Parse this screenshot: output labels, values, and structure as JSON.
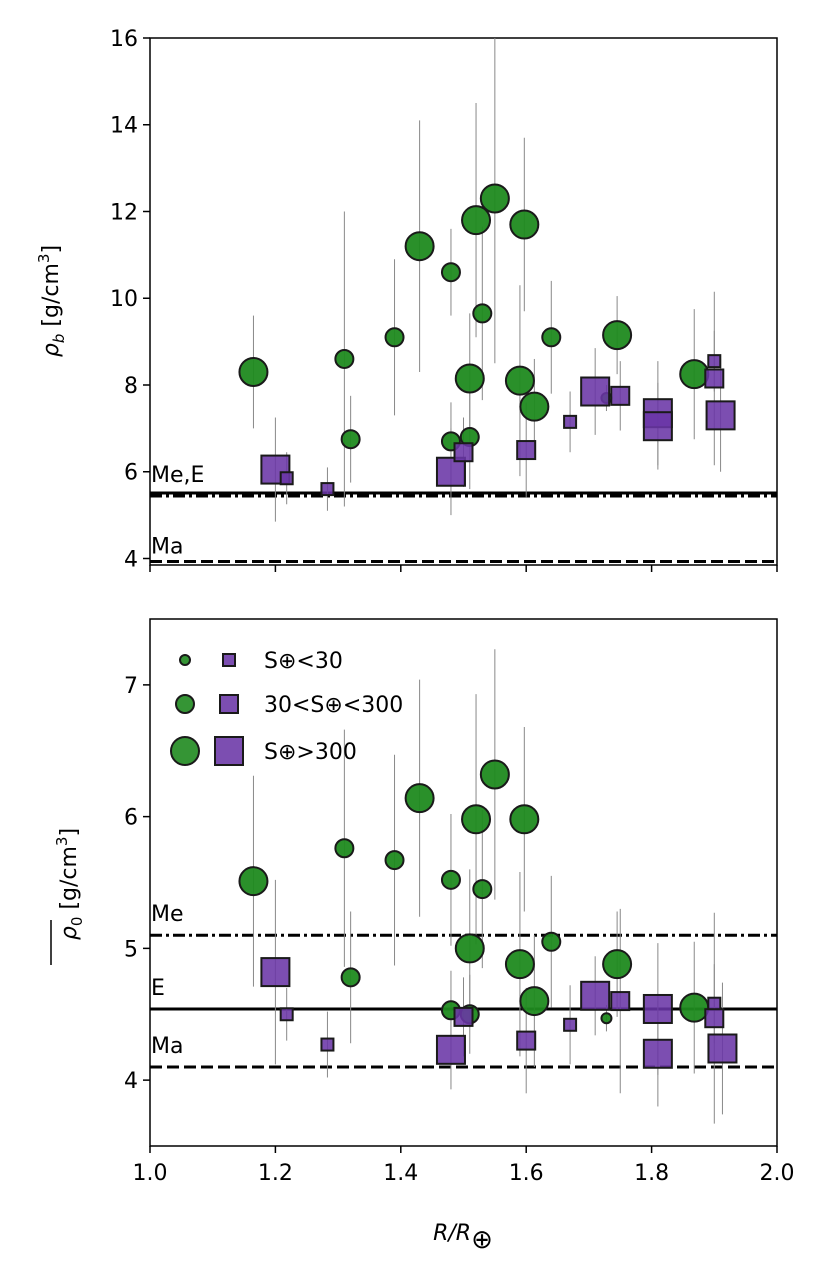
{
  "colors": {
    "green": "#1f8a1f",
    "purple": "#6a35a6",
    "edge": "#1a1a1a",
    "errorbar": "#888888"
  },
  "legend": {
    "entries": [
      {
        "size_class": "small",
        "label": "S⊕<30"
      },
      {
        "size_class": "medium",
        "label": "30<S⊕<300"
      },
      {
        "size_class": "large",
        "label": "S⊕>300"
      }
    ]
  },
  "xaxis": {
    "label_main": "R/R",
    "label_sub": "⊕",
    "range": [
      1.0,
      2.0
    ],
    "ticks": [
      "1.0",
      "1.2",
      "1.4",
      "1.6",
      "1.8",
      "2.0"
    ]
  },
  "chart_data": [
    {
      "type": "scatter",
      "panel": "top",
      "ylabel_sym": "ρ",
      "ylabel_sub": "b",
      "ylabel_unit": " [g/cm",
      "ylabel_sup": "3",
      "ylabel_end": "]",
      "ylim": [
        3.85,
        16
      ],
      "yticks": [
        "4",
        "6",
        "8",
        "10",
        "12",
        "14",
        "16"
      ],
      "reference_lines": [
        {
          "label": "Me,E",
          "y": 5.44,
          "style": "dashdot"
        },
        {
          "label": "",
          "y": 5.51,
          "style": "solid"
        },
        {
          "label": "Ma",
          "y": 3.93,
          "style": "dashed"
        }
      ],
      "series": [
        {
          "name": "rocky (green circles)",
          "marker": "circle",
          "points": [
            {
              "x": 1.165,
              "y": 8.3,
              "err": 1.3,
              "size": "large"
            },
            {
              "x": 1.31,
              "y": 8.6,
              "err": 3.4,
              "size": "medium"
            },
            {
              "x": 1.32,
              "y": 6.75,
              "err": 1.0,
              "size": "medium"
            },
            {
              "x": 1.39,
              "y": 9.1,
              "err": 1.8,
              "size": "medium"
            },
            {
              "x": 1.43,
              "y": 11.2,
              "err": 2.9,
              "size": "large"
            },
            {
              "x": 1.48,
              "y": 10.6,
              "err": 1.0,
              "size": "medium"
            },
            {
              "x": 1.48,
              "y": 6.7,
              "err": 0.9,
              "size": "medium"
            },
            {
              "x": 1.51,
              "y": 8.15,
              "err": 1.5,
              "size": "large"
            },
            {
              "x": 1.51,
              "y": 6.8,
              "err": 1.2,
              "size": "medium"
            },
            {
              "x": 1.52,
              "y": 11.8,
              "err": 2.7,
              "size": "large"
            },
            {
              "x": 1.53,
              "y": 9.65,
              "err": 2.0,
              "size": "medium"
            },
            {
              "x": 1.55,
              "y": 12.3,
              "err": 3.8,
              "size": "large"
            },
            {
              "x": 1.59,
              "y": 8.1,
              "err": 2.2,
              "size": "large"
            },
            {
              "x": 1.597,
              "y": 11.7,
              "err": 2.0,
              "size": "large"
            },
            {
              "x": 1.613,
              "y": 7.5,
              "err": 1.1,
              "size": "large"
            },
            {
              "x": 1.64,
              "y": 9.1,
              "err": 1.3,
              "size": "medium"
            },
            {
              "x": 1.728,
              "y": 7.7,
              "err": 0.3,
              "size": "small"
            },
            {
              "x": 1.745,
              "y": 9.15,
              "err": 0.9,
              "size": "large"
            },
            {
              "x": 1.868,
              "y": 8.25,
              "err": 1.5,
              "size": "large"
            }
          ]
        },
        {
          "name": "gas-rich (purple squares)",
          "marker": "square",
          "points": [
            {
              "x": 1.2,
              "y": 6.05,
              "err": 1.2,
              "size": "large"
            },
            {
              "x": 1.218,
              "y": 5.85,
              "err": 0.6,
              "size": "small"
            },
            {
              "x": 1.283,
              "y": 5.6,
              "err": 0.5,
              "size": "small"
            },
            {
              "x": 1.48,
              "y": 6.0,
              "err": 1.0,
              "size": "large"
            },
            {
              "x": 1.5,
              "y": 6.45,
              "err": 0.8,
              "size": "medium"
            },
            {
              "x": 1.6,
              "y": 6.5,
              "err": 1.1,
              "size": "medium"
            },
            {
              "x": 1.67,
              "y": 7.15,
              "err": 0.7,
              "size": "small"
            },
            {
              "x": 1.71,
              "y": 7.85,
              "err": 1.0,
              "size": "large"
            },
            {
              "x": 1.75,
              "y": 7.75,
              "err": 0.8,
              "size": "medium"
            },
            {
              "x": 1.81,
              "y": 7.35,
              "err": 1.2,
              "size": "large"
            },
            {
              "x": 1.81,
              "y": 7.05,
              "err": 1.0,
              "size": "large"
            },
            {
              "x": 1.9,
              "y": 8.55,
              "err": 0.7,
              "size": "small"
            },
            {
              "x": 1.9,
              "y": 8.15,
              "err": 2.0,
              "size": "medium"
            },
            {
              "x": 1.91,
              "y": 7.3,
              "err": 1.3,
              "size": "large"
            }
          ]
        }
      ]
    },
    {
      "type": "scatter",
      "panel": "bottom",
      "ylabel_sym": "ρ",
      "ylabel_sub": "0",
      "ylabel_unit": " [g/cm",
      "ylabel_sup": "3",
      "ylabel_end": "]",
      "ylim": [
        3.5,
        7.5
      ],
      "yticks": [
        "4",
        "5",
        "6",
        "7"
      ],
      "reference_lines": [
        {
          "label": "Me",
          "y": 5.1,
          "style": "dashdot"
        },
        {
          "label": "E",
          "y": 4.54,
          "style": "solid"
        },
        {
          "label": "Ma",
          "y": 4.1,
          "style": "dashed"
        }
      ],
      "series": [
        {
          "name": "rocky (green circles)",
          "marker": "circle",
          "points": [
            {
              "x": 1.165,
              "y": 5.51,
              "err": 0.8,
              "size": "large"
            },
            {
              "x": 1.31,
              "y": 5.76,
              "err": 0.9,
              "size": "medium"
            },
            {
              "x": 1.32,
              "y": 4.78,
              "err": 0.5,
              "size": "medium"
            },
            {
              "x": 1.39,
              "y": 5.67,
              "err": 0.8,
              "size": "medium"
            },
            {
              "x": 1.43,
              "y": 6.14,
              "err": 0.9,
              "size": "large"
            },
            {
              "x": 1.48,
              "y": 5.52,
              "err": 0.5,
              "size": "medium"
            },
            {
              "x": 1.48,
              "y": 4.53,
              "err": 0.3,
              "size": "medium"
            },
            {
              "x": 1.51,
              "y": 5.0,
              "err": 0.6,
              "size": "large"
            },
            {
              "x": 1.51,
              "y": 4.5,
              "err": 0.3,
              "size": "medium"
            },
            {
              "x": 1.52,
              "y": 5.98,
              "err": 0.95,
              "size": "large"
            },
            {
              "x": 1.53,
              "y": 5.45,
              "err": 0.6,
              "size": "medium"
            },
            {
              "x": 1.55,
              "y": 6.32,
              "err": 0.95,
              "size": "large"
            },
            {
              "x": 1.59,
              "y": 4.88,
              "err": 0.7,
              "size": "large"
            },
            {
              "x": 1.597,
              "y": 5.98,
              "err": 0.7,
              "size": "large"
            },
            {
              "x": 1.613,
              "y": 4.6,
              "err": 0.5,
              "size": "large"
            },
            {
              "x": 1.64,
              "y": 5.05,
              "err": 0.5,
              "size": "medium"
            },
            {
              "x": 1.728,
              "y": 4.47,
              "err": 0.1,
              "size": "small"
            },
            {
              "x": 1.745,
              "y": 4.88,
              "err": 0.4,
              "size": "large"
            },
            {
              "x": 1.868,
              "y": 4.55,
              "err": 0.5,
              "size": "large"
            }
          ]
        },
        {
          "name": "gas-rich (purple squares)",
          "marker": "square",
          "points": [
            {
              "x": 1.2,
              "y": 4.82,
              "err": 0.7,
              "size": "large"
            },
            {
              "x": 1.218,
              "y": 4.5,
              "err": 0.2,
              "size": "small"
            },
            {
              "x": 1.283,
              "y": 4.27,
              "err": 0.25,
              "size": "small"
            },
            {
              "x": 1.48,
              "y": 4.23,
              "err": 0.3,
              "size": "large"
            },
            {
              "x": 1.5,
              "y": 4.48,
              "err": 0.3,
              "size": "medium"
            },
            {
              "x": 1.6,
              "y": 4.3,
              "err": 0.4,
              "size": "medium"
            },
            {
              "x": 1.67,
              "y": 4.42,
              "err": 0.3,
              "size": "small"
            },
            {
              "x": 1.71,
              "y": 4.64,
              "err": 0.3,
              "size": "large"
            },
            {
              "x": 1.75,
              "y": 4.6,
              "err": 0.7,
              "size": "medium"
            },
            {
              "x": 1.81,
              "y": 4.54,
              "err": 0.5,
              "size": "large"
            },
            {
              "x": 1.81,
              "y": 4.2,
              "err": 0.4,
              "size": "large"
            },
            {
              "x": 1.9,
              "y": 4.58,
              "err": 0.3,
              "size": "small"
            },
            {
              "x": 1.9,
              "y": 4.47,
              "err": 0.8,
              "size": "medium"
            },
            {
              "x": 1.913,
              "y": 4.24,
              "err": 0.5,
              "size": "large"
            }
          ]
        }
      ]
    }
  ]
}
